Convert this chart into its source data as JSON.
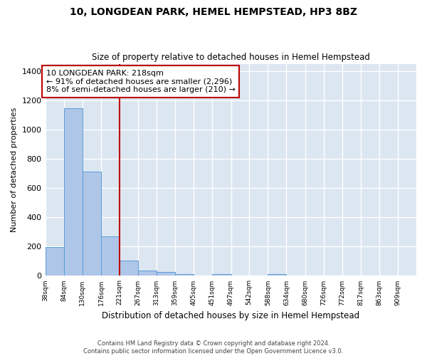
{
  "title": "10, LONGDEAN PARK, HEMEL HEMPSTEAD, HP3 8BZ",
  "subtitle": "Size of property relative to detached houses in Hemel Hempstead",
  "xlabel": "Distribution of detached houses by size in Hemel Hempstead",
  "ylabel": "Number of detached properties",
  "footnote1": "Contains HM Land Registry data © Crown copyright and database right 2024.",
  "footnote2": "Contains public sector information licensed under the Open Government Licence v3.0.",
  "annotation_line1": "10 LONGDEAN PARK: 218sqm",
  "annotation_line2": "← 91% of detached houses are smaller (2,296)",
  "annotation_line3": "8% of semi-detached houses are larger (210) →",
  "bar_edges": [
    38,
    84,
    130,
    176,
    221,
    267,
    313,
    359,
    405,
    451,
    497,
    542,
    588,
    634,
    680,
    726,
    772,
    817,
    863,
    909,
    955
  ],
  "bar_heights": [
    195,
    1145,
    715,
    270,
    105,
    35,
    28,
    14,
    0,
    14,
    0,
    0,
    14,
    0,
    0,
    0,
    0,
    0,
    0,
    0
  ],
  "bar_color": "#aec6e8",
  "bar_edgecolor": "#5b9bd5",
  "vline_color": "#c00000",
  "vline_x": 221,
  "annotation_box_color": "#c00000",
  "fig_facecolor": "#ffffff",
  "plot_bg_color": "#dce6f1",
  "grid_color": "#ffffff",
  "ylim": [
    0,
    1450
  ],
  "yticks": [
    0,
    200,
    400,
    600,
    800,
    1000,
    1200,
    1400
  ]
}
